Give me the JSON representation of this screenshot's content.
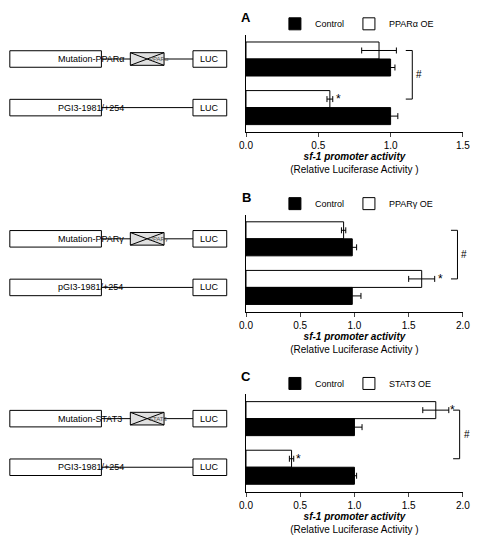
{
  "chart_data": [
    {
      "type": "bar",
      "title": "A",
      "orientation": "horizontal",
      "legend": "top",
      "grid": false,
      "tick_labels": "x",
      "categories": [
        "Mutation-PPARα",
        "PGI3-1981/+254"
      ],
      "reporter": "LUC",
      "site_labels": [
        "PPARα",
        null
      ],
      "series": [
        {
          "name": "Control",
          "color": "#000000",
          "values": [
            1.0,
            1.0
          ],
          "errors": [
            0.03,
            0.05
          ]
        },
        {
          "name": "PPARα OE",
          "color": "#ffffff",
          "values": [
            0.92,
            0.58
          ],
          "errors": [
            0.12,
            0.02
          ]
        }
      ],
      "x_label": "sf-1 promoter activity\n(Relative Luciferase Activity )",
      "xlim": [
        0,
        1.5
      ],
      "xticks": [
        {
          "value": 0,
          "label": "0.0"
        },
        {
          "value": 0.5,
          "label": "0.5"
        },
        {
          "value": 1,
          "label": "1.0"
        },
        {
          "value": 1.5,
          "label": "1.5"
        }
      ],
      "significance": [
        {
          "text": "*",
          "category": "PGI3-1981/+254",
          "series": "PPARα OE",
          "x": 0.64
        },
        {
          "text": "#",
          "categories": [
            "Mutation-PPARα",
            "PGI3-1981/+254"
          ],
          "series": "PPARα OE",
          "x": 1.15
        }
      ]
    },
    {
      "type": "bar",
      "title": "B",
      "orientation": "horizontal",
      "legend": "top",
      "grid": false,
      "tick_labels": "x",
      "categories": [
        "Mutation-PPARγ",
        "pGI3-1981/+254"
      ],
      "reporter": "LUC",
      "site_labels": [
        "PPARγ",
        null
      ],
      "series": [
        {
          "name": "Control",
          "color": "#000000",
          "values": [
            0.98,
            0.98
          ],
          "errors": [
            0.04,
            0.08
          ]
        },
        {
          "name": "PPARγ OE",
          "color": "#ffffff",
          "values": [
            0.9,
            1.62
          ],
          "errors": [
            0.02,
            0.12
          ]
        }
      ],
      "x_label": "sf-1 promoter activity\n(Relative Luciferase Activity )",
      "xlim": [
        0,
        2
      ],
      "xticks": [
        {
          "value": 0,
          "label": "0.0"
        },
        {
          "value": 0.5,
          "label": "0.5"
        },
        {
          "value": 1,
          "label": "1.0"
        },
        {
          "value": 1.5,
          "label": "1.5"
        },
        {
          "value": 2,
          "label": "2.0"
        }
      ],
      "significance": [
        {
          "text": "*",
          "category": "pGI3-1981/+254",
          "series": "PPARγ OE",
          "x": 1.79
        },
        {
          "text": "#",
          "categories": [
            "Mutation-PPARγ",
            "pGI3-1981/+254"
          ],
          "series": "PPARγ OE",
          "x": 1.95
        }
      ]
    },
    {
      "type": "bar",
      "title": "C",
      "orientation": "horizontal",
      "legend": "top",
      "grid": false,
      "tick_labels": "x",
      "categories": [
        "Mutation-STAT3",
        "PGI3-1981/+254"
      ],
      "reporter": "LUC",
      "site_labels": [
        "STAT3",
        null
      ],
      "series": [
        {
          "name": "Control",
          "color": "#000000",
          "values": [
            1.0,
            1.0
          ],
          "errors": [
            0.07,
            0.02
          ]
        },
        {
          "name": "STAT3 OE",
          "color": "#ffffff",
          "values": [
            1.75,
            0.42
          ],
          "errors": [
            0.12,
            0.02
          ]
        }
      ],
      "x_label": "sf-1 promoter activity\n(Relative Luciferase Activity )",
      "xlim": [
        0,
        2
      ],
      "xticks": [
        {
          "value": 0,
          "label": "0.0"
        },
        {
          "value": 0.5,
          "label": "0.5"
        },
        {
          "value": 1,
          "label": "1.0"
        },
        {
          "value": 1.5,
          "label": "1.5"
        },
        {
          "value": 2,
          "label": "2.0"
        }
      ],
      "significance": [
        {
          "text": "*",
          "category": "Mutation-STAT3",
          "series": "STAT3 OE",
          "x": 1.9
        },
        {
          "text": "*",
          "category": "PGI3-1981/+254",
          "series": "STAT3 OE",
          "x": 0.48
        },
        {
          "text": "#",
          "categories": [
            "Mutation-STAT3",
            "PGI3-1981/+254"
          ],
          "series": "STAT3 OE",
          "x": 1.97
        }
      ]
    }
  ]
}
